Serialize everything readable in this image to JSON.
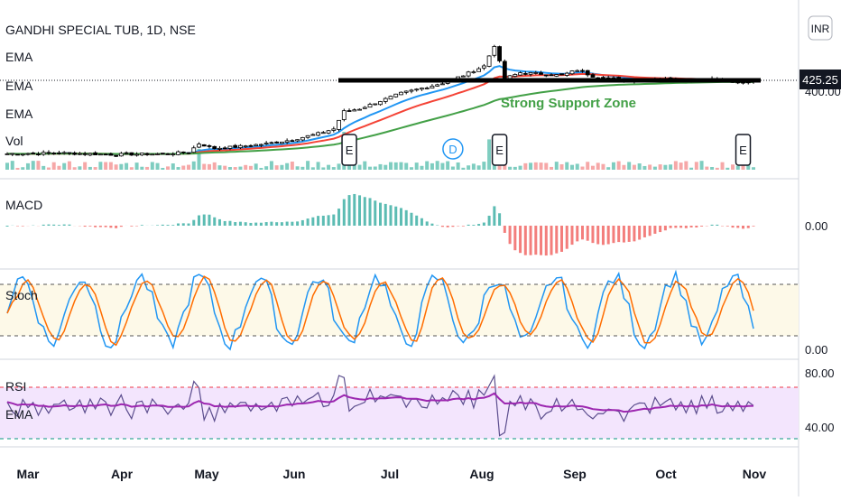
{
  "header": {
    "title": "GANDHI SPECIAL TUB, 1D, NSE",
    "currency": "INR",
    "last_price": "425.25"
  },
  "legend": {
    "ema1": "EMA",
    "ema2": "EMA",
    "ema3": "EMA",
    "vol": "Vol",
    "macd": "MACD",
    "stoch": "Stoch",
    "rsi": "RSI",
    "rsi_ema": "EMA"
  },
  "axis": {
    "price_tick": "400.00",
    "macd_tick": "0.00",
    "stoch_tick": "0.00",
    "rsi_hi": "80.00",
    "rsi_lo": "40.00"
  },
  "support_zone": {
    "label": "Strong Support Zone"
  },
  "events": [
    {
      "label": "E",
      "date_index": 66
    },
    {
      "label": "D",
      "date_index": 86
    },
    {
      "label": "E",
      "date_index": 95
    },
    {
      "label": "E",
      "date_index": 142
    }
  ],
  "colors": {
    "up": "#000000",
    "down": "#000000",
    "ema_fast": "#2196f3",
    "ema_mid": "#f44336",
    "ema_slow": "#43a047",
    "vol_up": "#7ecdc0",
    "vol_down": "#f6a8a8",
    "macd_up": "#26a69a",
    "macd_down": "#ef5350",
    "stoch_k": "#2196f3",
    "stoch_d": "#ff6d00",
    "rsi": "#5c4e8e",
    "rsi_ema": "#9c27b0"
  },
  "chart_data": {
    "type": "line",
    "title": "GANDHI SPECIAL TUB, 1D, NSE",
    "x_months": [
      "Mar",
      "Apr",
      "May",
      "Jun",
      "Jul",
      "Aug",
      "Sep",
      "Oct",
      "Nov"
    ],
    "price": {
      "close_anchors": [
        [
          0,
          236
        ],
        [
          10,
          238
        ],
        [
          20,
          234
        ],
        [
          30,
          236
        ],
        [
          35,
          240
        ],
        [
          37,
          262
        ],
        [
          40,
          250
        ],
        [
          45,
          255
        ],
        [
          50,
          262
        ],
        [
          55,
          272
        ],
        [
          60,
          288
        ],
        [
          63,
          300
        ],
        [
          65,
          345
        ],
        [
          68,
          352
        ],
        [
          72,
          372
        ],
        [
          76,
          392
        ],
        [
          80,
          405
        ],
        [
          84,
          418
        ],
        [
          88,
          438
        ],
        [
          92,
          462
        ],
        [
          94,
          515
        ],
        [
          96,
          430
        ],
        [
          99,
          445
        ],
        [
          103,
          442
        ],
        [
          107,
          438
        ],
        [
          110,
          452
        ],
        [
          113,
          436
        ],
        [
          117,
          430
        ],
        [
          120,
          425
        ],
        [
          124,
          428
        ],
        [
          128,
          430
        ],
        [
          132,
          426
        ],
        [
          136,
          430
        ],
        [
          140,
          420
        ],
        [
          144,
          418
        ]
      ],
      "last": 425.25,
      "support_level": 400
    },
    "ema_series": [
      {
        "role": "fast",
        "color": "#2196f3"
      },
      {
        "role": "mid",
        "color": "#f44336"
      },
      {
        "role": "slow",
        "color": "#43a047"
      }
    ],
    "volume_spikes": [
      [
        37,
        0.55
      ],
      [
        65,
        1.0
      ],
      [
        67,
        0.6
      ],
      [
        93,
        0.8
      ],
      [
        96,
        0.45
      ]
    ],
    "macd_range": [
      -1,
      1
    ],
    "stoch_range": [
      0,
      100
    ],
    "stoch_bounds": [
      80,
      20
    ],
    "rsi_bounds": [
      70,
      30
    ],
    "rsi_ticks": [
      80,
      40
    ],
    "n_bars": 145
  }
}
